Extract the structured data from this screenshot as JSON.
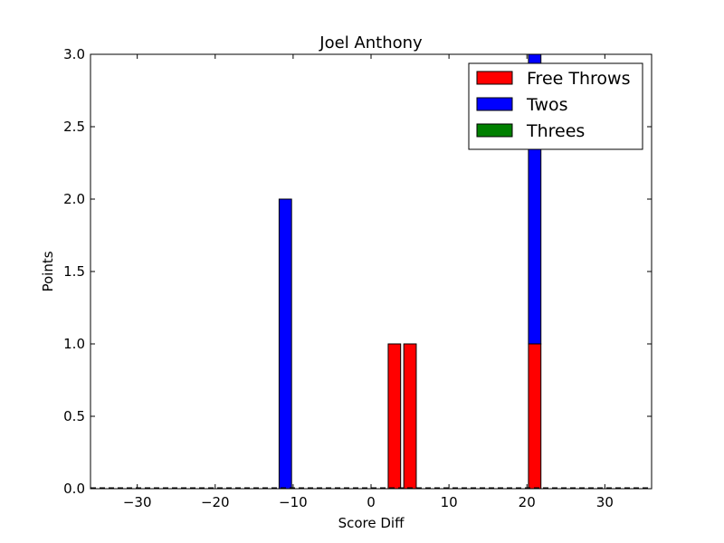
{
  "chart_data": {
    "type": "bar",
    "stacked": true,
    "title": "Joel Anthony",
    "xlabel": "Score Diff",
    "ylabel": "Points",
    "xlim": [
      -36,
      36
    ],
    "ylim": [
      0,
      3.0
    ],
    "xticks": [
      -30,
      -20,
      -10,
      0,
      10,
      20,
      30
    ],
    "xtick_labels": [
      "−30",
      "−20",
      "−10",
      "0",
      "10",
      "20",
      "30"
    ],
    "yticks": [
      0,
      0.5,
      1.0,
      1.5,
      2.0,
      2.5,
      3.0
    ],
    "ytick_labels": [
      "0.0",
      "0.5",
      "1.0",
      "1.5",
      "2.0",
      "2.5",
      "3.0"
    ],
    "grid": false,
    "legend_position": "top-right",
    "bar_width": 1.6,
    "x": [
      -11,
      3,
      5,
      21
    ],
    "series": [
      {
        "name": "Free Throws",
        "color": "#ff0000",
        "values": [
          0,
          1,
          1,
          1
        ]
      },
      {
        "name": "Twos",
        "color": "#0000ff",
        "values": [
          2,
          0,
          0,
          2
        ]
      },
      {
        "name": "Threes",
        "color": "#008000",
        "values": [
          0,
          0,
          0,
          0
        ]
      }
    ]
  }
}
